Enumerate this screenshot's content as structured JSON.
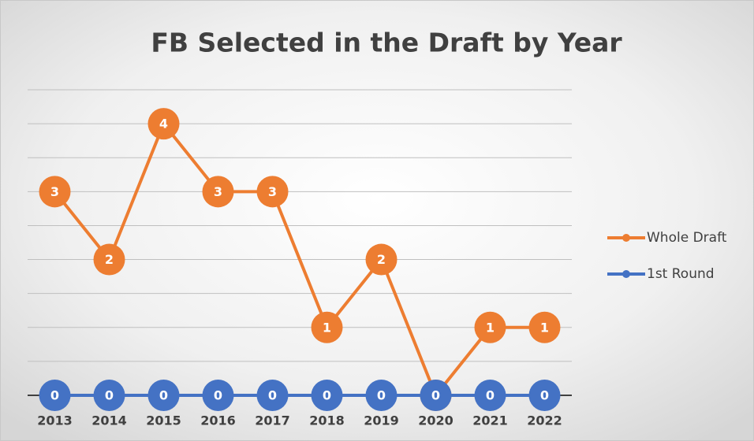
{
  "chart_data": {
    "type": "line",
    "title": "FB Selected in the Draft by Year",
    "categories": [
      "2013",
      "2014",
      "2015",
      "2016",
      "2017",
      "2018",
      "2019",
      "2020",
      "2021",
      "2022"
    ],
    "series": [
      {
        "name": "Whole Draft",
        "color": "#ED7D31",
        "values": [
          3,
          2,
          4,
          3,
          3,
          1,
          2,
          0,
          1,
          1
        ]
      },
      {
        "name": "1st Round",
        "color": "#4472C4",
        "values": [
          0,
          0,
          0,
          0,
          0,
          0,
          0,
          0,
          0,
          0
        ]
      }
    ],
    "ylim": [
      0,
      4.5
    ],
    "yticks": [
      0,
      0.5,
      1,
      1.5,
      2,
      2.5,
      3,
      3.5,
      4,
      4.5
    ],
    "grid": true,
    "legend": "right"
  }
}
